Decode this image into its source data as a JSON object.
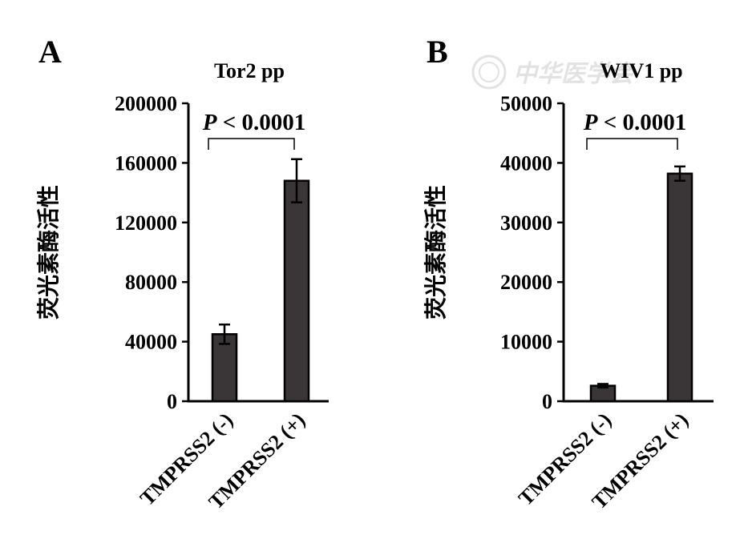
{
  "watermark": "中华医学会",
  "chart_data": [
    {
      "type": "bar",
      "panel": "A",
      "title": "Tor2 pp",
      "ylabel": "荧光素酶活性",
      "xlabel": "",
      "categories": [
        "TMPRSS2 (-)",
        "TMPRSS2 (+)"
      ],
      "values": [
        45000,
        148000
      ],
      "errors": [
        6500,
        14500
      ],
      "ylim": [
        0,
        200000
      ],
      "yticks": [
        0,
        40000,
        80000,
        120000,
        160000,
        200000
      ],
      "ytick_labels": [
        "0",
        "40000",
        "80000",
        "120000",
        "160000",
        "200000"
      ],
      "annotation": {
        "p_symbol": "P",
        "text": " < 0.0001"
      },
      "bar_color": "#3a3536",
      "grid": false
    },
    {
      "type": "bar",
      "panel": "B",
      "title": "WIV1 pp",
      "ylabel": "荧光素酶活性",
      "xlabel": "",
      "categories": [
        "TMPRSS2 (-)",
        "TMPRSS2 (+)"
      ],
      "values": [
        2600,
        38200
      ],
      "errors": [
        300,
        1200
      ],
      "ylim": [
        0,
        50000
      ],
      "yticks": [
        0,
        10000,
        20000,
        30000,
        40000,
        50000
      ],
      "ytick_labels": [
        "0",
        "10000",
        "20000",
        "30000",
        "40000",
        "50000"
      ],
      "annotation": {
        "p_symbol": "P",
        "text": " < 0.0001"
      },
      "bar_color": "#3a3536",
      "grid": false
    }
  ]
}
